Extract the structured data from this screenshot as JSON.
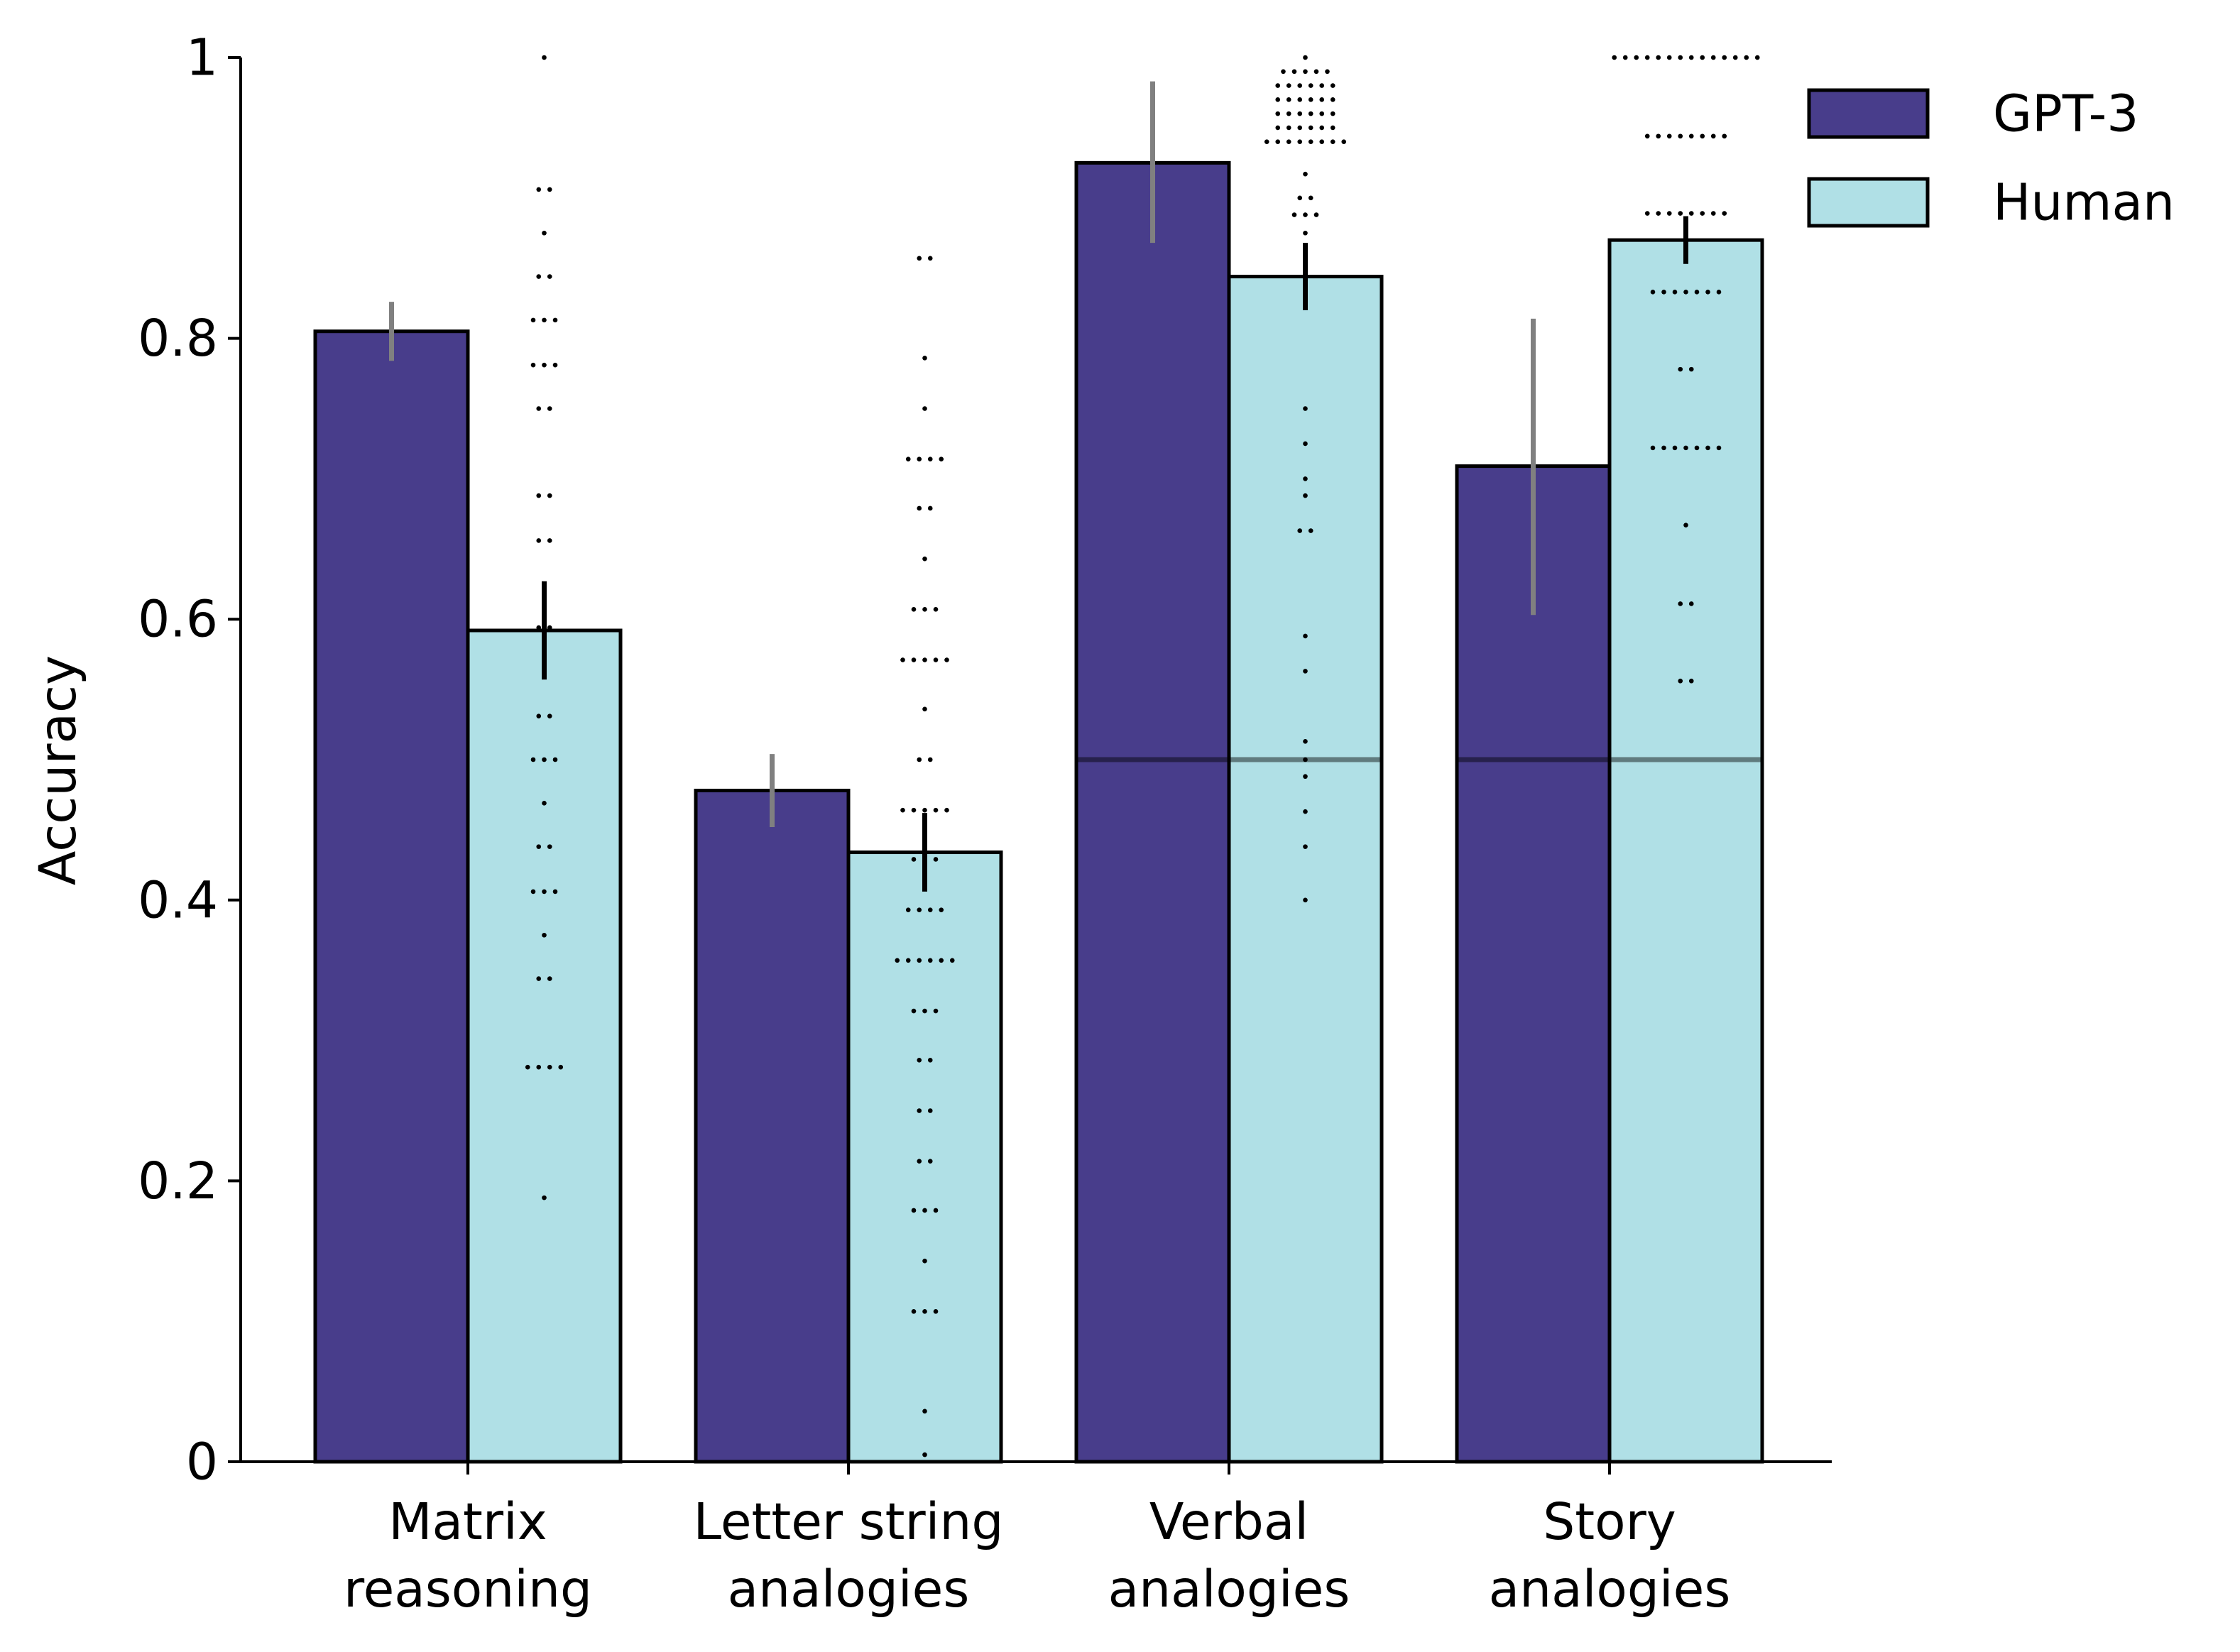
{
  "chart_data": {
    "type": "bar",
    "title": "",
    "xlabel": "",
    "ylabel": "Accuracy",
    "ylim": [
      0,
      1
    ],
    "yticks": [
      0,
      0.2,
      0.4,
      0.6,
      0.8,
      1
    ],
    "ytick_labels": [
      "0",
      "0.2",
      "0.4",
      "0.6",
      "0.8",
      "1"
    ],
    "categories": [
      "Matrix\nreasoning",
      "Letter string\nanalogies",
      "Verbal\nanalogies",
      "Story\nanalogies"
    ],
    "series": [
      {
        "name": "GPT-3",
        "color": "#483d8b",
        "values": [
          0.805,
          0.478,
          0.925,
          0.709
        ],
        "err_low": [
          0.784,
          0.452,
          0.868,
          0.603
        ],
        "err_high": [
          0.826,
          0.504,
          0.983,
          0.814
        ],
        "err_color": "#808080"
      },
      {
        "name": "Human",
        "color": "#b0e0e6",
        "values": [
          0.592,
          0.434,
          0.844,
          0.87
        ],
        "err_low": [
          0.557,
          0.406,
          0.82,
          0.853
        ],
        "err_high": [
          0.627,
          0.462,
          0.868,
          0.887
        ],
        "err_color": "#000000"
      }
    ],
    "chance_lines": [
      {
        "category_index": 2,
        "value": 0.5
      },
      {
        "category_index": 3,
        "value": 0.5
      }
    ],
    "individual_points": [
      [
        {
          "y": 1.0,
          "n": 1
        },
        {
          "y": 0.906,
          "n": 2
        },
        {
          "y": 0.875,
          "n": 1
        },
        {
          "y": 0.844,
          "n": 2
        },
        {
          "y": 0.813,
          "n": 3
        },
        {
          "y": 0.781,
          "n": 3
        },
        {
          "y": 0.75,
          "n": 2
        },
        {
          "y": 0.688,
          "n": 2
        },
        {
          "y": 0.656,
          "n": 2
        },
        {
          "y": 0.594,
          "n": 2
        },
        {
          "y": 0.531,
          "n": 2
        },
        {
          "y": 0.5,
          "n": 3
        },
        {
          "y": 0.469,
          "n": 1
        },
        {
          "y": 0.438,
          "n": 2
        },
        {
          "y": 0.406,
          "n": 3
        },
        {
          "y": 0.375,
          "n": 1
        },
        {
          "y": 0.344,
          "n": 2
        },
        {
          "y": 0.281,
          "n": 4
        },
        {
          "y": 0.188,
          "n": 1
        }
      ],
      [
        {
          "y": 0.857,
          "n": 2
        },
        {
          "y": 0.786,
          "n": 1
        },
        {
          "y": 0.75,
          "n": 1
        },
        {
          "y": 0.714,
          "n": 4
        },
        {
          "y": 0.679,
          "n": 2
        },
        {
          "y": 0.643,
          "n": 1
        },
        {
          "y": 0.607,
          "n": 3
        },
        {
          "y": 0.571,
          "n": 5
        },
        {
          "y": 0.536,
          "n": 1
        },
        {
          "y": 0.5,
          "n": 2
        },
        {
          "y": 0.464,
          "n": 5
        },
        {
          "y": 0.429,
          "n": 3
        },
        {
          "y": 0.393,
          "n": 4
        },
        {
          "y": 0.357,
          "n": 6
        },
        {
          "y": 0.321,
          "n": 3
        },
        {
          "y": 0.286,
          "n": 2
        },
        {
          "y": 0.25,
          "n": 2
        },
        {
          "y": 0.214,
          "n": 2
        },
        {
          "y": 0.179,
          "n": 3
        },
        {
          "y": 0.143,
          "n": 1
        },
        {
          "y": 0.107,
          "n": 3
        },
        {
          "y": 0.036,
          "n": 1
        },
        {
          "y": 0.005,
          "n": 1
        }
      ],
      [
        {
          "y": 1.0,
          "n": 1
        },
        {
          "y": 0.99,
          "n": 5
        },
        {
          "y": 0.98,
          "n": 6
        },
        {
          "y": 0.97,
          "n": 6
        },
        {
          "y": 0.96,
          "n": 6
        },
        {
          "y": 0.95,
          "n": 6
        },
        {
          "y": 0.94,
          "n": 8
        },
        {
          "y": 0.917,
          "n": 1
        },
        {
          "y": 0.9,
          "n": 2
        },
        {
          "y": 0.888,
          "n": 3
        },
        {
          "y": 0.875,
          "n": 1
        },
        {
          "y": 0.85,
          "n": 1
        },
        {
          "y": 0.75,
          "n": 1
        },
        {
          "y": 0.725,
          "n": 1
        },
        {
          "y": 0.7,
          "n": 1
        },
        {
          "y": 0.688,
          "n": 1
        },
        {
          "y": 0.663,
          "n": 2
        },
        {
          "y": 0.588,
          "n": 1
        },
        {
          "y": 0.563,
          "n": 1
        },
        {
          "y": 0.513,
          "n": 1
        },
        {
          "y": 0.5,
          "n": 1
        },
        {
          "y": 0.488,
          "n": 1
        },
        {
          "y": 0.463,
          "n": 1
        },
        {
          "y": 0.438,
          "n": 1
        },
        {
          "y": 0.4,
          "n": 1
        }
      ],
      [
        {
          "y": 1.0,
          "n": 14
        },
        {
          "y": 0.944,
          "n": 8
        },
        {
          "y": 0.889,
          "n": 8
        },
        {
          "y": 0.833,
          "n": 7
        },
        {
          "y": 0.778,
          "n": 2
        },
        {
          "y": 0.722,
          "n": 7
        },
        {
          "y": 0.667,
          "n": 1
        },
        {
          "y": 0.611,
          "n": 2
        },
        {
          "y": 0.556,
          "n": 2
        }
      ]
    ],
    "legend": {
      "position": "top-right",
      "entries": [
        "GPT-3",
        "Human"
      ]
    }
  }
}
